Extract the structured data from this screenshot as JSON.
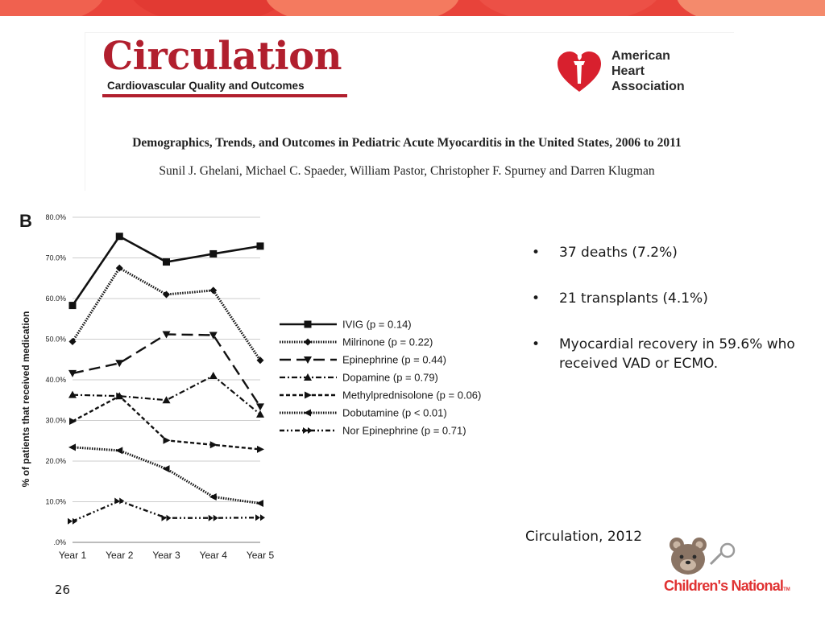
{
  "colors": {
    "banner": "#e8433a",
    "journal_red": "#b11f2e",
    "brand_red": "#e03232"
  },
  "article": {
    "journal": "Circulation",
    "journal_subtitle": "Cardiovascular Quality and Outcomes",
    "publisher_logo": "American Heart Association",
    "title": "Demographics, Trends, and Outcomes in Pediatric Acute Myocarditis in the United States, 2006 to 2011",
    "authors": "Sunil J. Ghelani, Michael C. Spaeder, William Pastor, Christopher F. Spurney and Darren Klugman"
  },
  "chart_data": {
    "type": "line",
    "panel_label": "B",
    "title": "",
    "xlabel": "",
    "ylabel": "% of patients that received medication",
    "categories": [
      "Year 1",
      "Year 2",
      "Year 3",
      "Year 4",
      "Year 5"
    ],
    "ylim": [
      0,
      80
    ],
    "yticks": [
      ".0%",
      "10.0%",
      "20.0%",
      "30.0%",
      "40.0%",
      "50.0%",
      "60.0%",
      "70.0%",
      "80.0%"
    ],
    "grid": true,
    "legend_position": "right",
    "series": [
      {
        "name": "IVIG (p = 0.14)",
        "marker": "square",
        "dash": "solid",
        "values": [
          58.3,
          75.3,
          69.0,
          71.0,
          72.9
        ]
      },
      {
        "name": "Milrinone (p = 0.22)",
        "marker": "diamond",
        "dash": "dotted",
        "values": [
          49.4,
          67.5,
          61.0,
          62.0,
          44.8
        ]
      },
      {
        "name": "Epinephrine (p = 0.44)",
        "marker": "triangle-down",
        "dash": "longdash",
        "values": [
          41.6,
          44.1,
          51.2,
          51.0,
          33.4
        ]
      },
      {
        "name": "Dopamine (p = 0.79)",
        "marker": "triangle-up",
        "dash": "dashdot",
        "values": [
          36.3,
          36.0,
          35.0,
          41.0,
          31.5
        ]
      },
      {
        "name": "Methylprednisolone (p = 0.06)",
        "marker": "arrow-right",
        "dash": "shortdash",
        "values": [
          29.8,
          36.0,
          25.1,
          24.0,
          22.9
        ]
      },
      {
        "name": "Dobutamine (p < 0.01)",
        "marker": "arrow-left",
        "dash": "dotted",
        "values": [
          23.4,
          22.6,
          18.1,
          11.2,
          9.6
        ]
      },
      {
        "name": "Nor Epinephrine (p = 0.71)",
        "marker": "double-arrow",
        "dash": "dashdotdot",
        "values": [
          5.2,
          10.2,
          6.0,
          6.0,
          6.1
        ]
      }
    ]
  },
  "bullets": [
    "37 deaths (7.2%)",
    "21 transplants (4.1%)",
    "Myocardial recovery in 59.6% who received VAD or ECMO."
  ],
  "citation": "Circulation, 2012",
  "page_number": "26",
  "footer_logo": {
    "name": "Children's National",
    "wordmark": "Children's National",
    "tm": "TM",
    "icon": "bear-icon"
  }
}
